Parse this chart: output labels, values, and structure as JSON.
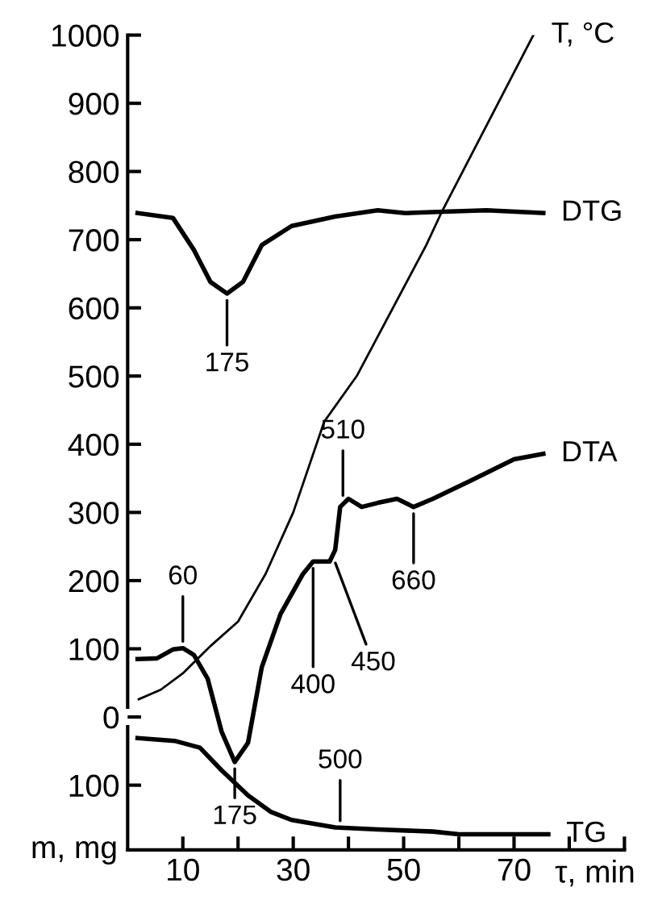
{
  "chart_data": {
    "type": "line",
    "xlabel": "τ, min",
    "ylabel": "m, mg",
    "xlim": [
      0,
      90
    ],
    "xticks": [
      10,
      {
        "value": 20,
        "label": null
      },
      30,
      {
        "value": 40,
        "label": null
      },
      50,
      {
        "value": 60,
        "label": null
      },
      70,
      {
        "value": 80,
        "label": null
      },
      {
        "value": 90,
        "label": null
      }
    ],
    "ylim": [
      -195,
      1000
    ],
    "yticks": [
      {
        "value": -100,
        "label": "100"
      },
      0,
      100,
      200,
      300,
      400,
      500,
      600,
      700,
      800,
      900,
      1000
    ],
    "grid": false,
    "legend": false,
    "marker": "none",
    "line_style": "solid",
    "series": [
      {
        "name": "T, °C",
        "color": "#000000",
        "x": [
          2,
          6,
          10,
          15,
          20,
          25,
          30,
          35.6,
          41.5,
          54.1,
          56.8,
          73.5
        ],
        "values": [
          26,
          40,
          64,
          104,
          140,
          210,
          300,
          433,
          500,
          692,
          739,
          1000
        ]
      },
      {
        "name": "DTG",
        "color": "#000000",
        "x": [
          1.8,
          8.2,
          12,
          15,
          18,
          20.9,
          24.3,
          29.7,
          37.6,
          45.3,
          50.3,
          57.2,
          65,
          75.3
        ],
        "values": [
          739,
          732,
          685,
          638,
          621,
          638,
          692,
          720,
          734,
          743,
          739,
          741,
          743,
          739
        ]
      },
      {
        "name": "DTA",
        "color": "#000000",
        "x": [
          1.8,
          5.3,
          8.2,
          10,
          12,
          14.5,
          17,
          19.4,
          21.8,
          24.3,
          27.7,
          31.7,
          33.6,
          36.6,
          37.6,
          38.5,
          40,
          42.4,
          45.3,
          48.8,
          51.8,
          55.3,
          62,
          70,
          75.3
        ],
        "values": [
          85,
          86,
          99,
          101,
          91,
          56,
          -21,
          -66,
          -38,
          73,
          151,
          209,
          228,
          228,
          245,
          308,
          320,
          308,
          314,
          320,
          308,
          320,
          346,
          378,
          386
        ]
      },
      {
        "name": "TG",
        "color": "#000000",
        "x": [
          1.8,
          8.5,
          13.1,
          17,
          21.8,
          25.9,
          29.7,
          37.6,
          45.3,
          55.3,
          60,
          76.2
        ],
        "values": [
          -31,
          -35,
          -45,
          -78,
          -115,
          -139,
          -151,
          -162,
          -165,
          -168,
          -172,
          -172
        ]
      }
    ],
    "annotations": [
      {
        "text": "175",
        "x": 18,
        "y": 621
      },
      {
        "text": "60",
        "x": 10,
        "y": 101
      },
      {
        "text": "175",
        "x": 19.4,
        "y": -66
      },
      {
        "text": "400",
        "x": 33.6,
        "y": 228
      },
      {
        "text": "450",
        "x": 37.2,
        "y": 235
      },
      {
        "text": "510",
        "x": 39,
        "y": 315
      },
      {
        "text": "660",
        "x": 51.8,
        "y": 308
      },
      {
        "text": "500",
        "x": 38.5,
        "y": -162
      }
    ]
  }
}
